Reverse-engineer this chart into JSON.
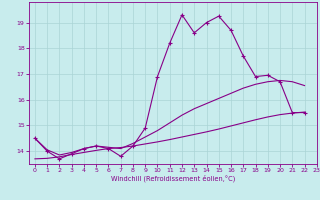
{
  "x_jagged": [
    0,
    1,
    2,
    3,
    4,
    5,
    6,
    7,
    8,
    9,
    10,
    11,
    12,
    13,
    14,
    15,
    16,
    17,
    18,
    19,
    20,
    21,
    22
  ],
  "y_jagged": [
    14.5,
    14.0,
    13.7,
    13.9,
    14.1,
    14.2,
    14.1,
    13.8,
    14.2,
    14.9,
    16.9,
    18.2,
    19.3,
    18.6,
    19.0,
    19.25,
    18.7,
    17.7,
    16.9,
    16.95,
    16.7,
    15.5,
    15.5
  ],
  "x_smooth1": [
    0,
    1,
    2,
    3,
    4,
    5,
    6,
    7,
    8,
    9,
    10,
    11,
    12,
    13,
    14,
    15,
    16,
    17,
    18,
    19,
    20,
    21,
    22
  ],
  "y_smooth1": [
    14.5,
    14.05,
    13.85,
    13.95,
    14.1,
    14.2,
    14.15,
    14.1,
    14.3,
    14.55,
    14.8,
    15.1,
    15.4,
    15.65,
    15.85,
    16.05,
    16.25,
    16.45,
    16.6,
    16.7,
    16.75,
    16.7,
    16.55
  ],
  "x_smooth2": [
    0,
    1,
    2,
    3,
    4,
    5,
    6,
    7,
    8,
    9,
    10,
    11,
    12,
    13,
    14,
    15,
    16,
    17,
    18,
    19,
    20,
    21,
    22
  ],
  "y_smooth2": [
    13.7,
    13.72,
    13.78,
    13.87,
    13.95,
    14.03,
    14.1,
    14.14,
    14.2,
    14.28,
    14.36,
    14.45,
    14.55,
    14.65,
    14.75,
    14.86,
    14.98,
    15.1,
    15.22,
    15.33,
    15.42,
    15.48,
    15.52
  ],
  "color": "#880088",
  "bg_color": "#c8eced",
  "grid_color": "#aad4d5",
  "xlabel": "Windchill (Refroidissement éolien,°C)",
  "ylim": [
    13.5,
    19.8
  ],
  "xlim": [
    -0.5,
    23
  ],
  "yticks": [
    14,
    15,
    16,
    17,
    18,
    19
  ],
  "xticks": [
    0,
    1,
    2,
    3,
    4,
    5,
    6,
    7,
    8,
    9,
    10,
    11,
    12,
    13,
    14,
    15,
    16,
    17,
    18,
    19,
    20,
    21,
    22,
    23
  ]
}
